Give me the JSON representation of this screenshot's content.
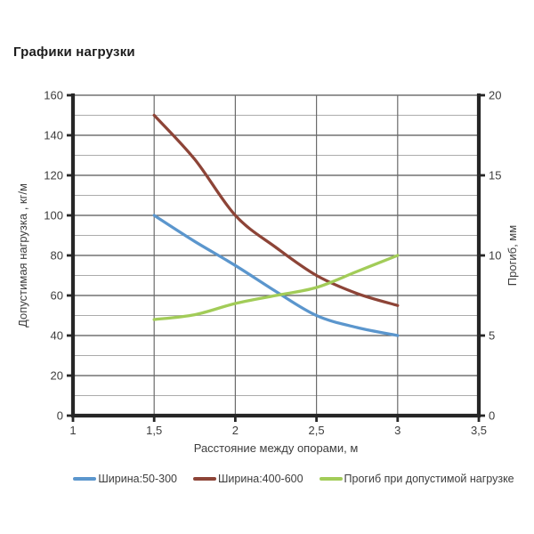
{
  "page": {
    "background": "#ffffff"
  },
  "chart_data": {
    "type": "line",
    "title": "Графики нагрузки",
    "xlabel": "Расстояние между опорами, м",
    "ylabel_left": "Допустимая нагрузка , кг/м",
    "ylabel_right": "Прогиб, мм",
    "xlim": [
      1,
      3.5
    ],
    "ylim_left": [
      0,
      160
    ],
    "ylim_right": [
      0,
      20
    ],
    "x_tick_labels": [
      "1",
      "1,5",
      "2",
      "2,5",
      "3",
      "3,5"
    ],
    "x_tick_values": [
      1,
      1.5,
      2,
      2.5,
      3,
      3.5
    ],
    "y_ticks_left": [
      0,
      20,
      40,
      60,
      80,
      100,
      120,
      140,
      160
    ],
    "y_ticks_right": [
      0,
      5,
      10,
      15,
      20
    ],
    "grid": {
      "minor_step_left": 10,
      "vertical_lines_at": [
        1.5,
        2,
        2.5,
        3
      ],
      "major_color": "#565656",
      "minor_color": "#ababab",
      "vertical_color": "#6b6b6b"
    },
    "axis_color": "#262626",
    "tick_text_color": "#3d3d3d",
    "x": [
      1.5,
      1.75,
      2,
      2.25,
      2.5,
      2.75,
      3
    ],
    "series": [
      {
        "name": "Ширина:50-300",
        "axis": "left",
        "color": "#5b96cd",
        "values": [
          100,
          87,
          75,
          62,
          50,
          44,
          40
        ]
      },
      {
        "name": "Ширина:400-600",
        "axis": "left",
        "color": "#8d4437",
        "values": [
          150,
          128,
          100,
          84,
          70,
          61,
          55
        ]
      },
      {
        "name": "Прогиб при допустимой нагрузке",
        "axis": "right",
        "color": "#a2cc58",
        "values": [
          6,
          6.3,
          7,
          7.5,
          8,
          9,
          10
        ]
      }
    ],
    "legend_position": "bottom"
  }
}
